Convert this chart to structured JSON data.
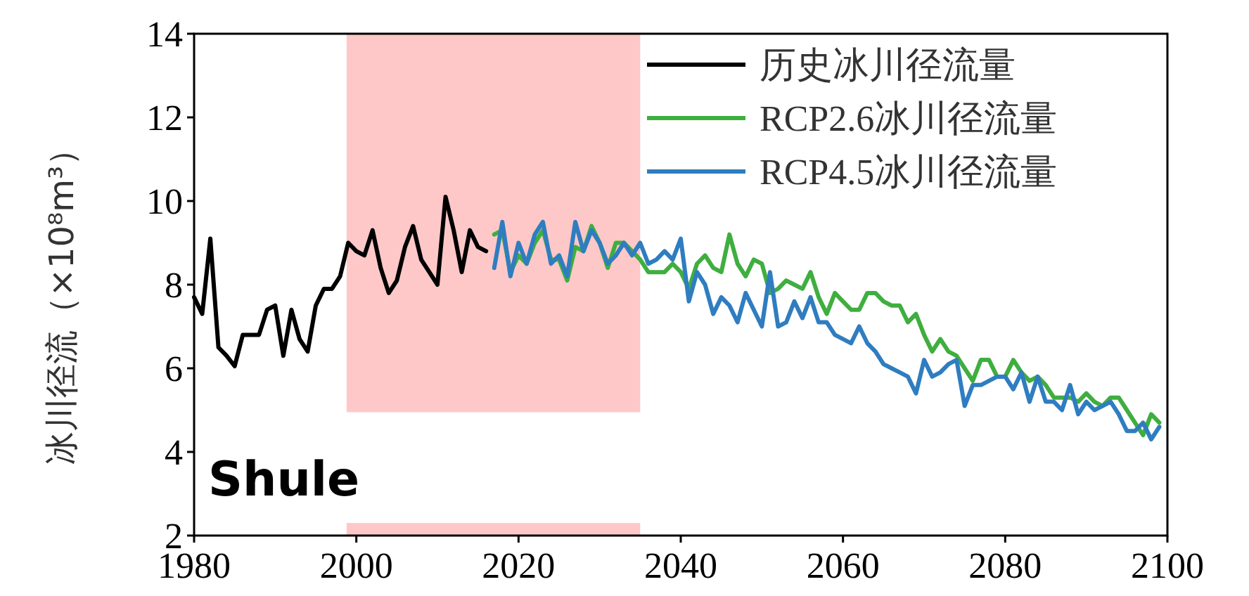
{
  "chart_data": {
    "type": "line",
    "ylabel": "冰川径流（×10⁸m³）",
    "xlim": [
      1980,
      2100
    ],
    "xticks": [
      1980,
      2000,
      2020,
      2040,
      2060,
      2080,
      2100
    ],
    "ylim": [
      2,
      14
    ],
    "yticks": [
      2,
      4,
      6,
      8,
      10,
      12,
      14
    ],
    "grid": false,
    "legend": "top right",
    "annotations": [
      "Shule"
    ],
    "bands": [
      {
        "axis": "x",
        "from": 1998.8,
        "to": 2035,
        "color": "#ffc8c8"
      }
    ],
    "series": [
      {
        "name": "历史冰川径流量",
        "color": "#000000",
        "x": [
          1980,
          1981,
          1982,
          1983,
          1984,
          1985,
          1986,
          1987,
          1988,
          1989,
          1990,
          1991,
          1992,
          1993,
          1994,
          1995,
          1996,
          1997,
          1998,
          1999,
          2000,
          2001,
          2002,
          2003,
          2004,
          2005,
          2006,
          2007,
          2008,
          2009,
          2010,
          2011,
          2012,
          2013,
          2014,
          2015,
          2016
        ],
        "values": [
          7.7,
          7.3,
          9.1,
          6.5,
          6.3,
          6.05,
          6.8,
          6.8,
          6.8,
          7.4,
          7.5,
          6.3,
          7.4,
          6.7,
          6.4,
          7.5,
          7.9,
          7.9,
          8.2,
          9.0,
          8.8,
          8.7,
          9.3,
          8.4,
          7.8,
          8.1,
          8.9,
          9.4,
          8.6,
          8.3,
          8.0,
          10.1,
          9.3,
          8.3,
          9.3,
          8.9,
          8.8
        ]
      },
      {
        "name": "RCP2.6冰川径流量",
        "color": "#3fae3f",
        "x": [
          2017,
          2018,
          2019,
          2020,
          2021,
          2022,
          2023,
          2024,
          2025,
          2026,
          2027,
          2028,
          2029,
          2030,
          2031,
          2032,
          2033,
          2034,
          2035,
          2036,
          2037,
          2038,
          2039,
          2040,
          2041,
          2042,
          2043,
          2044,
          2045,
          2046,
          2047,
          2048,
          2049,
          2050,
          2051,
          2052,
          2053,
          2054,
          2055,
          2056,
          2057,
          2058,
          2059,
          2060,
          2061,
          2062,
          2063,
          2064,
          2065,
          2066,
          2067,
          2068,
          2069,
          2070,
          2071,
          2072,
          2073,
          2074,
          2075,
          2076,
          2077,
          2078,
          2079,
          2080,
          2081,
          2082,
          2083,
          2084,
          2085,
          2086,
          2087,
          2088,
          2089,
          2090,
          2091,
          2092,
          2093,
          2094,
          2095,
          2096,
          2097,
          2098,
          2099
        ],
        "values": [
          9.2,
          9.3,
          8.3,
          8.7,
          8.5,
          9.0,
          9.3,
          8.6,
          8.6,
          8.1,
          8.9,
          8.8,
          9.4,
          9.0,
          8.4,
          9.0,
          9.0,
          8.8,
          8.6,
          8.3,
          8.3,
          8.3,
          8.5,
          8.3,
          7.9,
          8.5,
          8.7,
          8.4,
          8.3,
          9.2,
          8.5,
          8.2,
          8.6,
          8.5,
          7.8,
          7.9,
          8.1,
          8.0,
          7.9,
          8.3,
          7.7,
          7.3,
          7.8,
          7.6,
          7.4,
          7.4,
          7.8,
          7.8,
          7.6,
          7.5,
          7.5,
          7.1,
          7.3,
          6.8,
          6.4,
          6.7,
          6.4,
          6.3,
          6.0,
          5.7,
          6.2,
          6.2,
          5.8,
          5.8,
          6.2,
          5.9,
          5.7,
          5.8,
          5.6,
          5.3,
          5.3,
          5.3,
          5.2,
          5.4,
          5.2,
          5.1,
          5.3,
          5.3,
          5.0,
          4.7,
          4.4,
          4.9,
          4.7
        ]
      },
      {
        "name": "RCP4.5冰川径流量",
        "color": "#2f7dc0",
        "x": [
          2017,
          2018,
          2019,
          2020,
          2021,
          2022,
          2023,
          2024,
          2025,
          2026,
          2027,
          2028,
          2029,
          2030,
          2031,
          2032,
          2033,
          2034,
          2035,
          2036,
          2037,
          2038,
          2039,
          2040,
          2041,
          2042,
          2043,
          2044,
          2045,
          2046,
          2047,
          2048,
          2049,
          2050,
          2051,
          2052,
          2053,
          2054,
          2055,
          2056,
          2057,
          2058,
          2059,
          2060,
          2061,
          2062,
          2063,
          2064,
          2065,
          2066,
          2067,
          2068,
          2069,
          2070,
          2071,
          2072,
          2073,
          2074,
          2075,
          2076,
          2077,
          2078,
          2079,
          2080,
          2081,
          2082,
          2083,
          2084,
          2085,
          2086,
          2087,
          2088,
          2089,
          2090,
          2091,
          2092,
          2093,
          2094,
          2095,
          2096,
          2097,
          2098,
          2099
        ],
        "values": [
          8.4,
          9.5,
          8.2,
          9.0,
          8.5,
          9.2,
          9.5,
          8.5,
          8.7,
          8.2,
          9.5,
          8.8,
          9.3,
          9.0,
          8.5,
          8.7,
          9.0,
          8.7,
          9.0,
          8.5,
          8.6,
          8.8,
          8.6,
          9.1,
          7.6,
          8.3,
          8.0,
          7.3,
          7.7,
          7.5,
          7.1,
          7.8,
          7.4,
          7.0,
          8.3,
          7.0,
          7.1,
          7.6,
          7.2,
          7.7,
          7.1,
          7.1,
          6.8,
          6.7,
          6.6,
          7.0,
          6.6,
          6.4,
          6.1,
          6.0,
          5.9,
          5.8,
          5.4,
          6.2,
          5.8,
          5.9,
          6.1,
          6.2,
          5.1,
          5.6,
          5.6,
          5.7,
          5.8,
          5.8,
          5.5,
          5.9,
          5.2,
          5.8,
          5.2,
          5.2,
          5.0,
          5.6,
          4.9,
          5.2,
          5.0,
          5.1,
          5.2,
          4.9,
          4.5,
          4.5,
          4.7,
          4.3,
          4.6
        ]
      }
    ]
  }
}
